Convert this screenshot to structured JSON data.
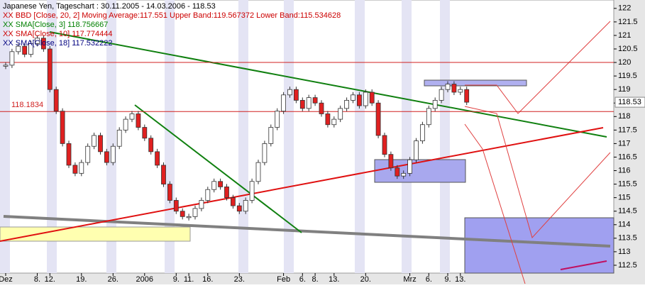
{
  "chart_data": {
    "type": "candlestick",
    "legend": [
      {
        "text": "Japanese Yen, Tageschart : 30.11.2005 - 14.03.2006 - 118.53",
        "color": "#000000"
      },
      {
        "text": "XX BBD [Close, 20, 2] Moving Average:117.551 Upper Band:119.567372 Lower Band:115.534628",
        "color": "#cc0000"
      },
      {
        "text": "XX SMA[Close, 3] 118.756667",
        "color": "#008000"
      },
      {
        "text": "XX SMA[Close, 10] 117.774444",
        "color": "#cc0000"
      },
      {
        "text": "XX SMA[Close, 18] 117.532222",
        "color": "#000080"
      }
    ],
    "categories": [
      "Dez",
      null,
      null,
      null,
      null,
      "8.",
      null,
      "12.",
      null,
      null,
      null,
      null,
      "19.",
      null,
      null,
      null,
      null,
      "26.",
      null,
      null,
      null,
      null,
      "2006",
      null,
      null,
      null,
      null,
      "9.",
      null,
      "11.",
      null,
      null,
      "16.",
      null,
      null,
      null,
      null,
      "23.",
      null,
      null,
      null,
      null,
      null,
      null,
      "Feb",
      null,
      null,
      "6.",
      null,
      "8.",
      null,
      null,
      "13.",
      null,
      null,
      null,
      null,
      "20.",
      null,
      null,
      null,
      null,
      null,
      null,
      "Mrz",
      null,
      null,
      "6.",
      null,
      null,
      "9.",
      null,
      "13.",
      null
    ],
    "series": [
      {
        "name": "Close",
        "values": [
          119.9,
          120.4,
          120.6,
          120.3,
          120.7,
          120.9,
          120.5,
          119.0,
          118.2,
          117.0,
          116.2,
          115.9,
          116.3,
          116.9,
          117.3,
          116.7,
          116.3,
          116.9,
          117.5,
          117.9,
          118.1,
          117.6,
          117.2,
          116.7,
          116.2,
          115.5,
          114.9,
          114.5,
          114.3,
          114.3,
          114.6,
          114.9,
          115.3,
          115.6,
          115.4,
          115.0,
          114.7,
          114.5,
          114.9,
          115.6,
          116.3,
          117.0,
          117.6,
          118.2,
          118.8,
          119.0,
          118.6,
          118.3,
          118.7,
          118.5,
          118.1,
          117.7,
          117.9,
          118.3,
          118.6,
          118.8,
          118.4,
          118.9,
          118.5,
          117.3,
          116.6,
          116.1,
          115.8,
          115.9,
          116.4,
          117.1,
          117.7,
          118.3,
          118.6,
          119.0,
          119.2,
          118.9,
          119.0,
          118.53
        ]
      }
    ],
    "price_line": 118.1834,
    "resistance": 120,
    "last_price": 118.53,
    "ylim": [
      112.21,
      122.31
    ],
    "yticks": [
      112.5,
      113,
      113.5,
      114,
      114.5,
      115,
      115.5,
      116,
      116.5,
      117,
      117.5,
      118,
      118.5,
      119,
      119.5,
      120,
      120.5,
      121,
      121.5,
      122
    ]
  }
}
